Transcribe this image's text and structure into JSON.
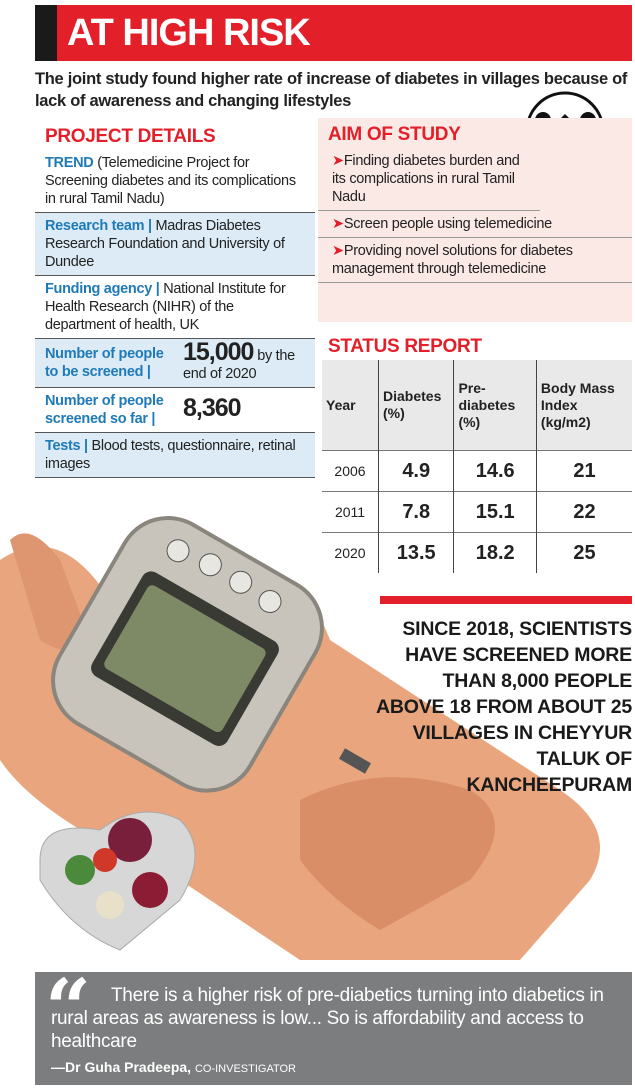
{
  "title": "AT HIGH RISK",
  "intro": "The joint study found higher rate of increase of diabetes in villages because of lack of awareness and changing lifestyles",
  "project_details": {
    "heading": "PROJECT DETAILS",
    "items": [
      {
        "label": "TREND",
        "text": "(Telemedicine Project for Screening diabetes and its complications in rural Tamil Nadu)"
      },
      {
        "label": "Research team |",
        "text": "Madras Diabetes Research Foundation and University of Dundee"
      },
      {
        "label": "Funding agency |",
        "text": "National Institute for Health Research (NIHR) of the department of health, UK"
      },
      {
        "label": "Number of people to be screened |",
        "value": "15,000",
        "text": "by the end of 2020"
      },
      {
        "label": "Number of people screened so far |",
        "value": "8,360"
      },
      {
        "label": "Tests |",
        "text": "Blood tests, questionnaire, retinal images"
      }
    ]
  },
  "aim_of_study": {
    "heading": "AIM OF STUDY",
    "items": [
      "Finding diabetes burden and its complications in rural Tamil Nadu",
      "Screen people using telemedicine",
      "Providing novel solutions for diabetes management through telemedicine"
    ]
  },
  "status_report": {
    "heading": "STATUS REPORT",
    "columns": [
      "Year",
      "Diabetes (%)",
      "Pre-diabetes (%)",
      "Body Mass Index (kg/m2)"
    ],
    "rows": [
      [
        2006,
        4.9,
        14.6,
        21
      ],
      [
        2011,
        7.8,
        15.1,
        22
      ],
      [
        2020,
        13.5,
        18.2,
        25
      ]
    ]
  },
  "callout": "SINCE 2018, SCIENTISTS HAVE SCREENED MORE THAN 8,000 PEOPLE ABOVE 18 FROM ABOUT 25 VILLAGES IN CHEYYUR TALUK OF KANCHEEPURAM",
  "quote": {
    "text": "There is a higher risk of pre-diabetics turning into diabetics in rural areas as awareness is low... So is affordability and access to healthcare",
    "author": "—Dr Guha Pradeepa,",
    "role": "CO-INVESTIGATOR"
  }
}
